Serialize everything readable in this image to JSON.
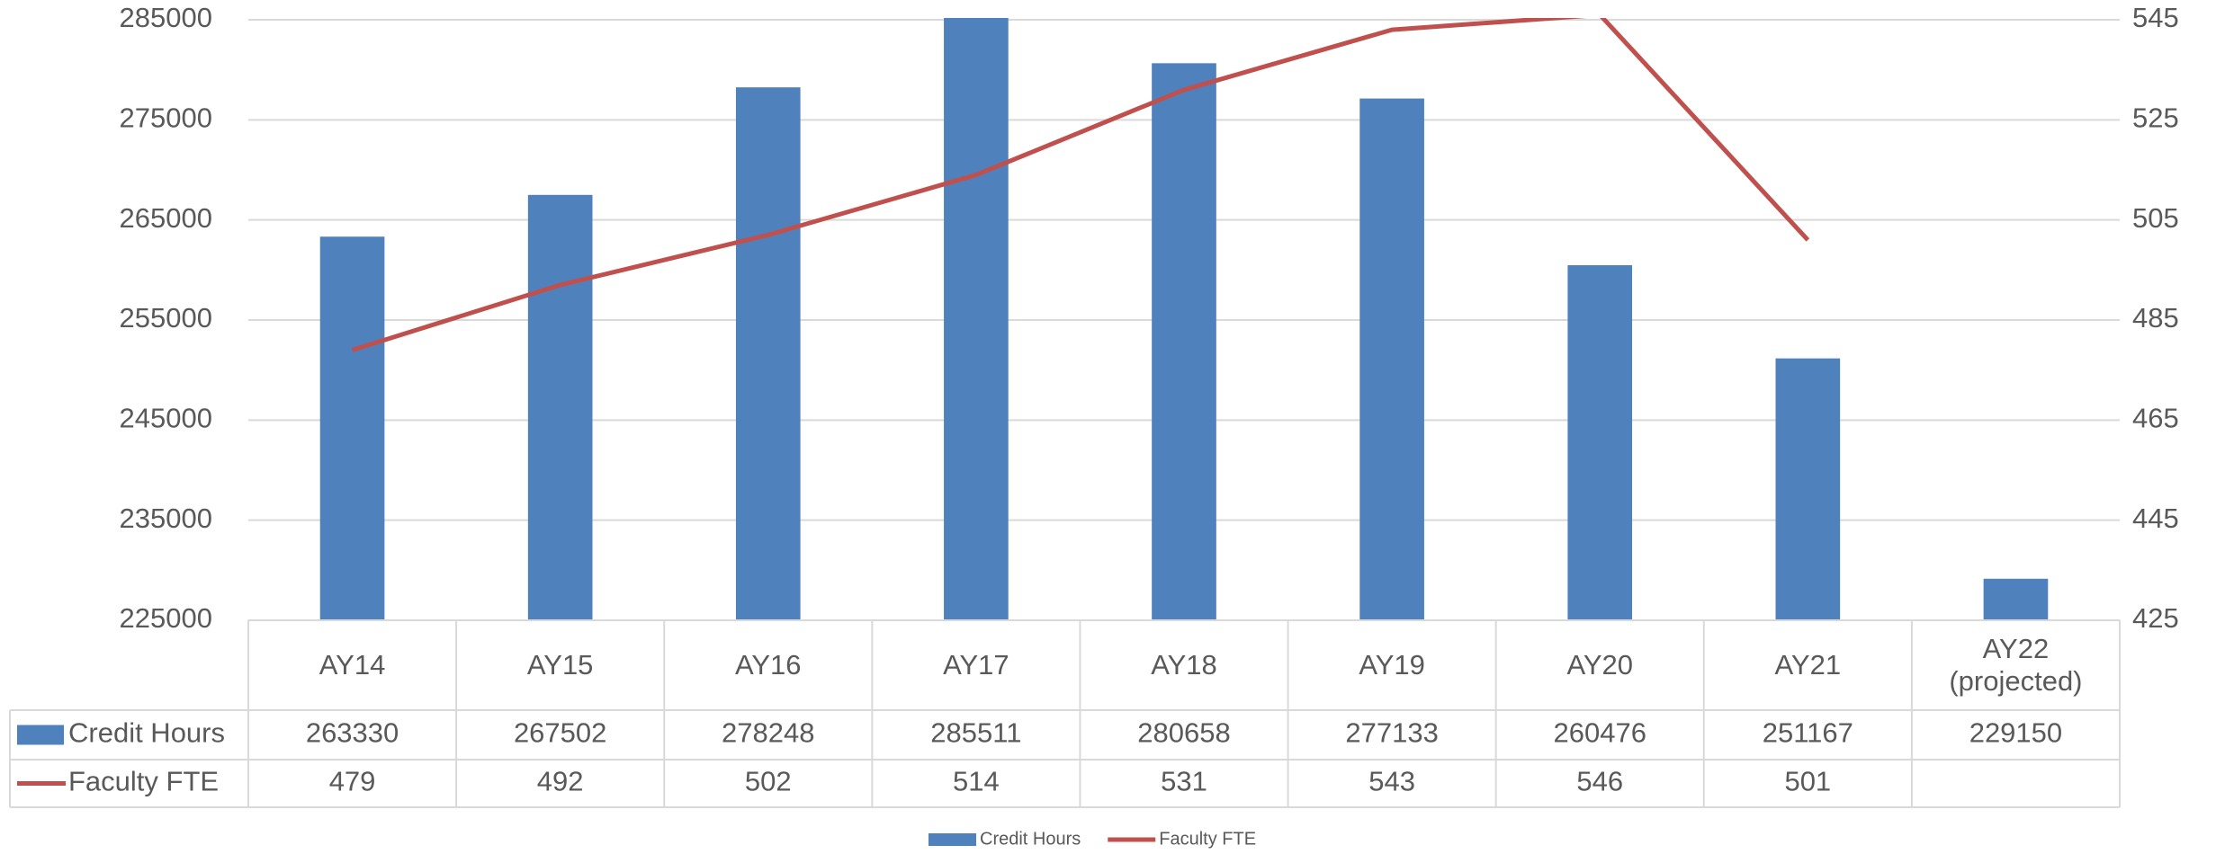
{
  "chart_data": {
    "type": "bar",
    "categories": [
      "AY14",
      "AY15",
      "AY16",
      "AY17",
      "AY18",
      "AY19",
      "AY20",
      "AY21",
      "AY22 (projected)"
    ],
    "series": [
      {
        "name": "Credit Hours",
        "type": "bar",
        "color": "#4f81bd",
        "values": [
          263330,
          267502,
          278248,
          285511,
          280658,
          277133,
          260476,
          251167,
          229150
        ]
      },
      {
        "name": "Faculty FTE",
        "type": "line",
        "axis": "y2",
        "color": "#c0504d",
        "values": [
          479,
          492,
          502,
          514,
          531,
          543,
          546,
          501,
          null
        ]
      }
    ],
    "ylim": [
      225000,
      285000
    ],
    "yticks": [
      225000,
      235000,
      245000,
      255000,
      265000,
      275000,
      285000
    ],
    "y2lim": [
      425,
      545
    ],
    "y2ticks": [
      425,
      445,
      465,
      485,
      505,
      525,
      545
    ],
    "grid": true,
    "legend": "bottom",
    "data_table": true
  }
}
